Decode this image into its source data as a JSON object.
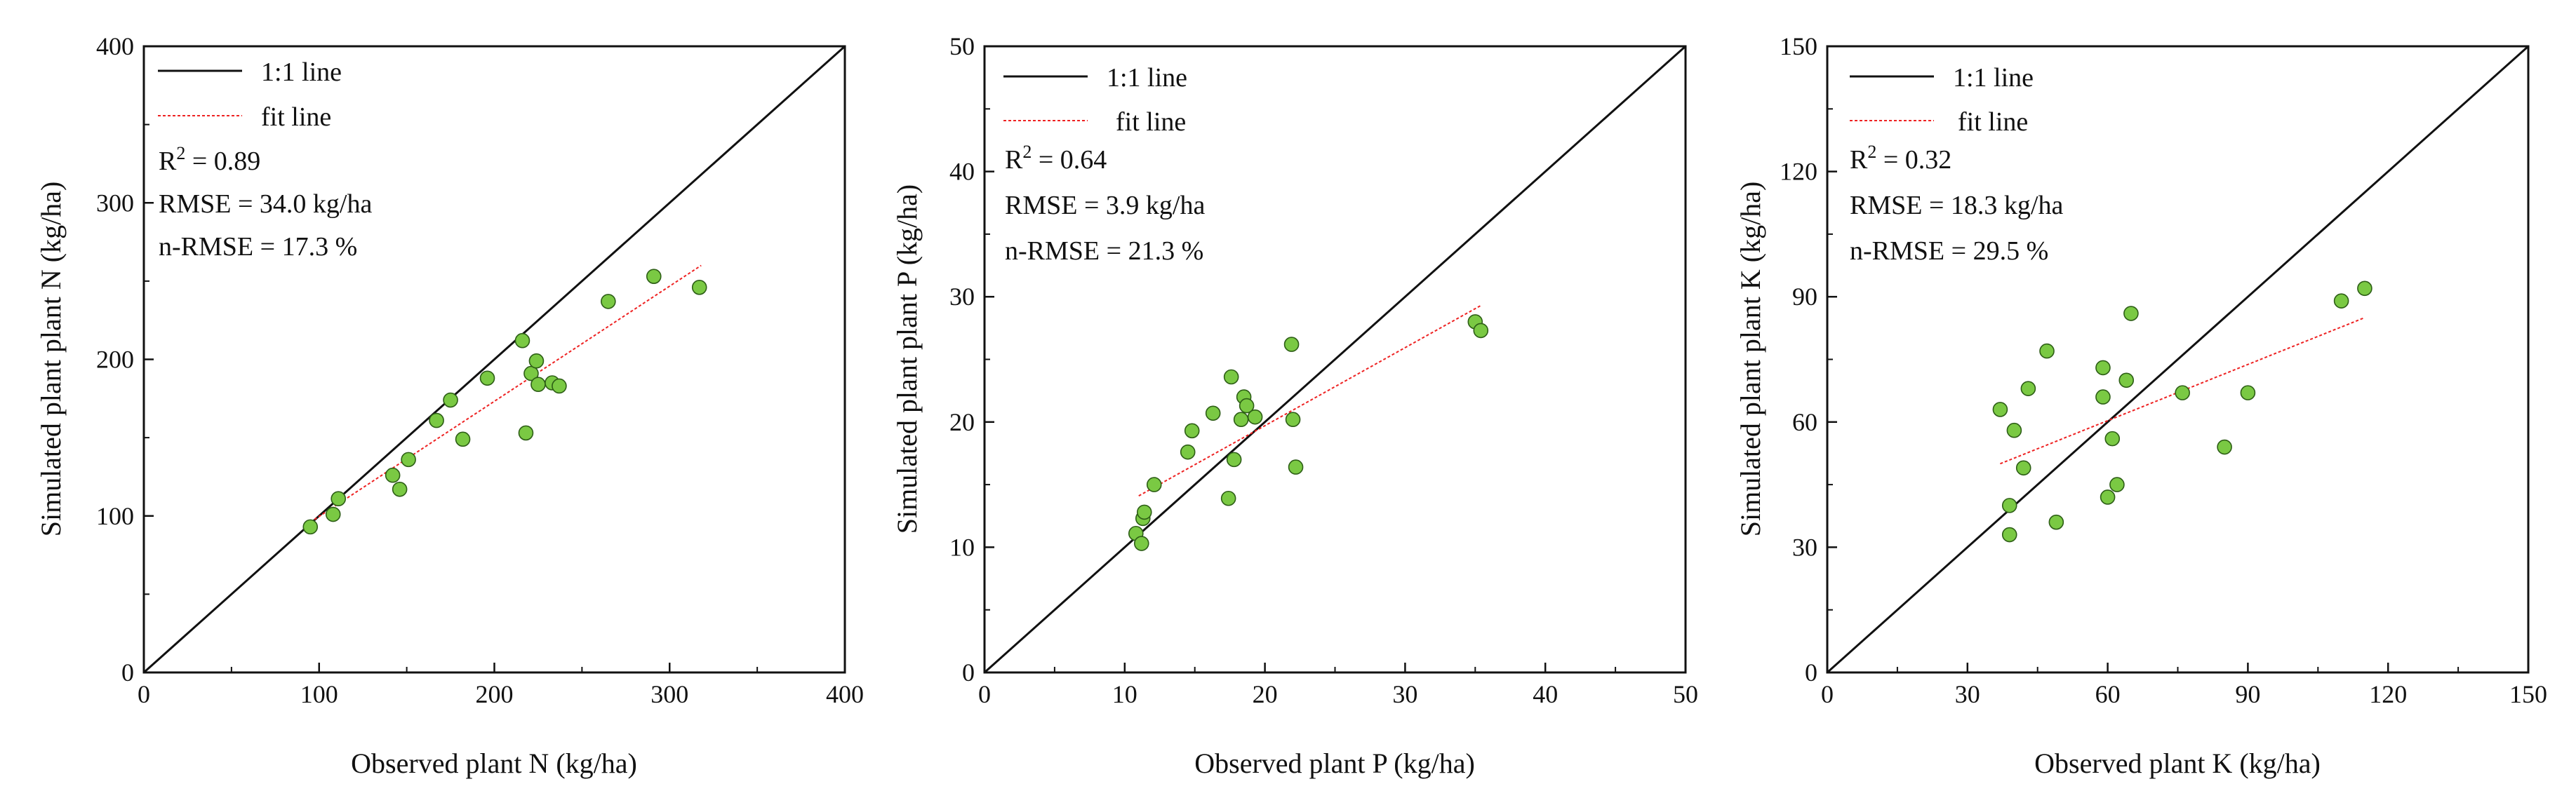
{
  "chart_data": [
    {
      "type": "scatter",
      "id": "plant-n",
      "xlabel": "Observed plant N (kg/ha)",
      "ylabel": "Simulated plant plant N (kg/ha)",
      "xlim": [
        0,
        400
      ],
      "ylim": [
        0,
        400
      ],
      "xticks": [
        "0",
        "100",
        "200",
        "300",
        "400"
      ],
      "yticks": [
        "0",
        "100",
        "200",
        "300",
        "400"
      ],
      "legend": {
        "one_to_one": "1:1 line",
        "fit": "fit line"
      },
      "r2_label": "R",
      "r2_sup": "2",
      "r2_value": " = 0.89",
      "rmse_text": "RMSE =  34.0 kg/ha",
      "nrmse_text": "n-RMSE =  17.3 %",
      "fit_line": [
        [
          95,
          96
        ],
        [
          318,
          260
        ]
      ],
      "points": [
        [
          95,
          93
        ],
        [
          108,
          101
        ],
        [
          111,
          111
        ],
        [
          142,
          126
        ],
        [
          146,
          117
        ],
        [
          151,
          136
        ],
        [
          167,
          161
        ],
        [
          175,
          174
        ],
        [
          182,
          149
        ],
        [
          196,
          188
        ],
        [
          216,
          212
        ],
        [
          218,
          153
        ],
        [
          221,
          191
        ],
        [
          224,
          199
        ],
        [
          225,
          184
        ],
        [
          233,
          185
        ],
        [
          237,
          183
        ],
        [
          265,
          237
        ],
        [
          291,
          253
        ],
        [
          317,
          246
        ]
      ]
    },
    {
      "type": "scatter",
      "id": "plant-p",
      "xlabel": "Observed plant P (kg/ha)",
      "ylabel": "Simulated plant plant P (kg/ha)",
      "xlim": [
        0,
        50
      ],
      "ylim": [
        0,
        50
      ],
      "xticks": [
        "0",
        "10",
        "20",
        "30",
        "40",
        "50"
      ],
      "yticks": [
        "0",
        "10",
        "20",
        "30",
        "40",
        "50"
      ],
      "legend": {
        "one_to_one": "1:1 line",
        "fit": "fit line"
      },
      "r2_label": "R",
      "r2_sup": "2",
      "r2_value": " = 0.64",
      "rmse_text": "RMSE =  3.9 kg/ha",
      "nrmse_text": "n-RMSE =  21.3 %",
      "fit_line": [
        [
          11,
          14.1
        ],
        [
          35.4,
          29.3
        ]
      ],
      "points": [
        [
          10.8,
          11.1
        ],
        [
          11.2,
          10.3
        ],
        [
          11.3,
          12.3
        ],
        [
          11.4,
          12.8
        ],
        [
          12.1,
          15.0
        ],
        [
          14.5,
          17.6
        ],
        [
          14.8,
          19.3
        ],
        [
          16.3,
          20.7
        ],
        [
          17.4,
          13.9
        ],
        [
          17.6,
          23.6
        ],
        [
          17.8,
          17.0
        ],
        [
          18.3,
          20.2
        ],
        [
          18.5,
          22.0
        ],
        [
          18.7,
          21.3
        ],
        [
          19.3,
          20.4
        ],
        [
          21.9,
          26.2
        ],
        [
          22.0,
          20.2
        ],
        [
          22.2,
          16.4
        ],
        [
          35.0,
          28.0
        ],
        [
          35.4,
          27.3
        ]
      ]
    },
    {
      "type": "scatter",
      "id": "plant-k",
      "xlabel": "Observed plant K (kg/ha)",
      "ylabel": "Simulated plant plant K (kg/ha)",
      "xlim": [
        0,
        150
      ],
      "ylim": [
        0,
        150
      ],
      "xticks": [
        "0",
        "30",
        "60",
        "90",
        "120",
        "150"
      ],
      "yticks": [
        "0",
        "30",
        "60",
        "90",
        "120",
        "150"
      ],
      "legend": {
        "one_to_one": "1:1 line",
        "fit": "fit line"
      },
      "r2_label": "R",
      "r2_sup": "2",
      "r2_value": " = 0.32",
      "rmse_text": "RMSE =  18.3 kg/ha",
      "nrmse_text": "n-RMSE =  29.5 %",
      "fit_line": [
        [
          37,
          50
        ],
        [
          115,
          85
        ]
      ],
      "points": [
        [
          37,
          63
        ],
        [
          39,
          40
        ],
        [
          39,
          33
        ],
        [
          40,
          58
        ],
        [
          42,
          49
        ],
        [
          43,
          68
        ],
        [
          47,
          77
        ],
        [
          49,
          36
        ],
        [
          59,
          73
        ],
        [
          59,
          66
        ],
        [
          60,
          42
        ],
        [
          61,
          56
        ],
        [
          62,
          45
        ],
        [
          64,
          70
        ],
        [
          65,
          86
        ],
        [
          76,
          67
        ],
        [
          85,
          54
        ],
        [
          90,
          67
        ],
        [
          110,
          89
        ],
        [
          115,
          92
        ]
      ]
    }
  ]
}
